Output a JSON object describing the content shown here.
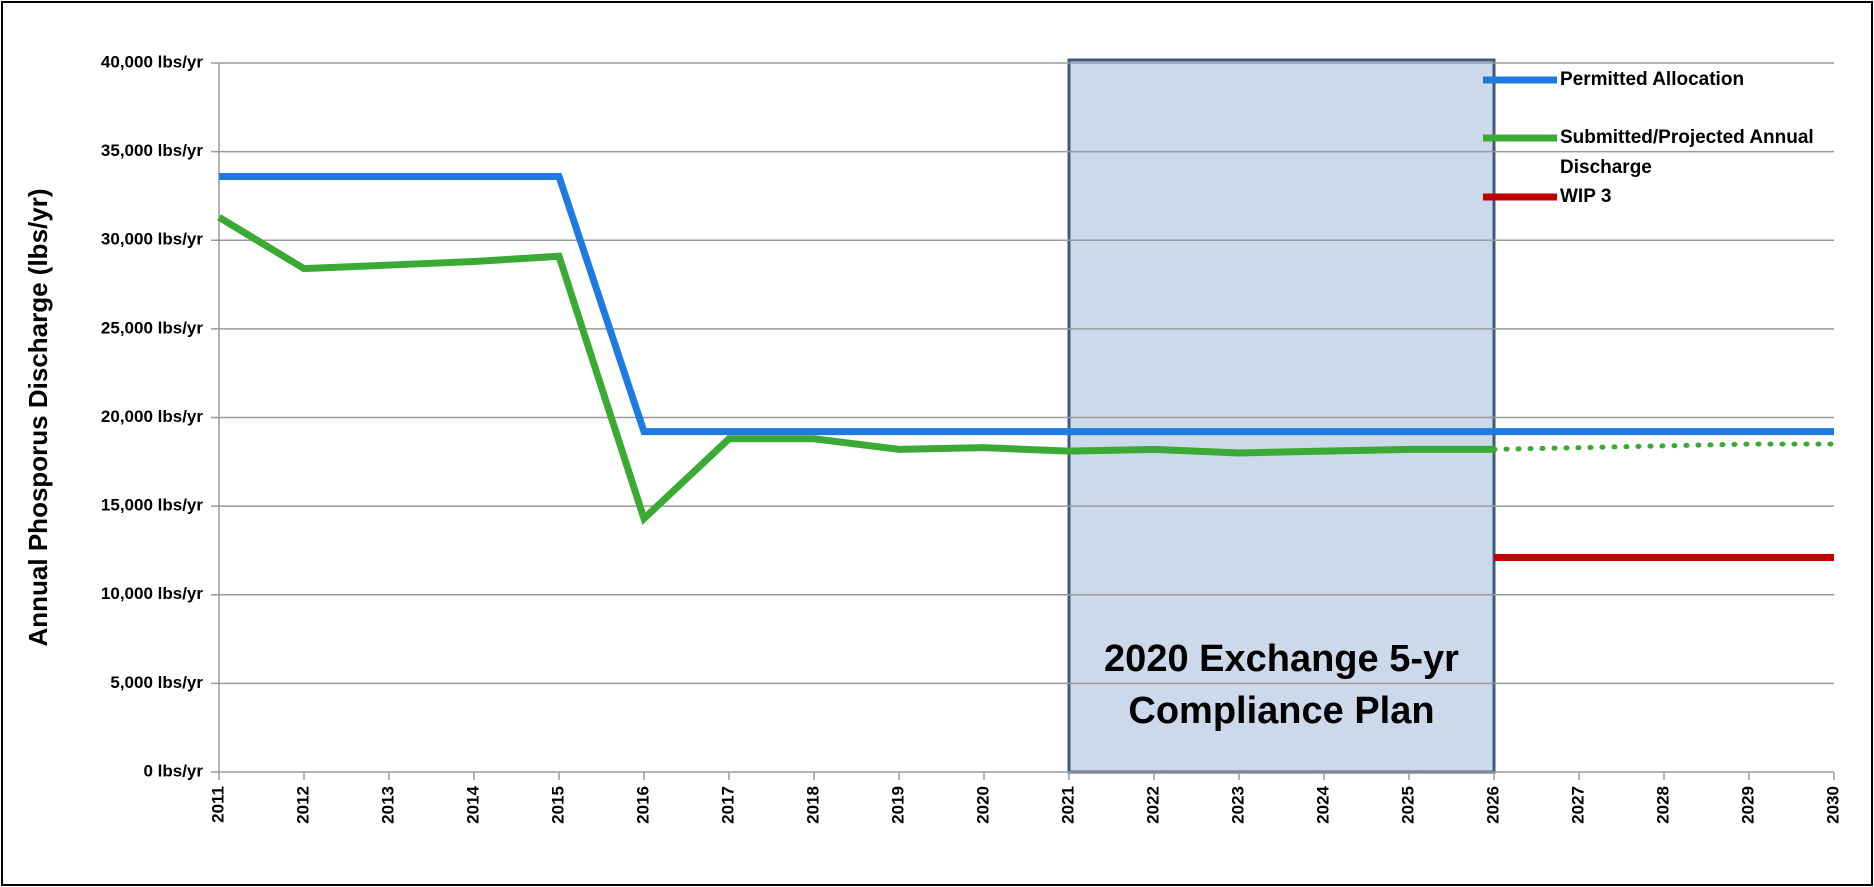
{
  "chart_data": {
    "type": "line",
    "y_label": "Annual Phosporus Discharge (lbs/yr)",
    "x": [
      2011,
      2012,
      2013,
      2014,
      2015,
      2016,
      2017,
      2018,
      2019,
      2020,
      2021,
      2022,
      2023,
      2024,
      2025,
      2026,
      2027,
      2028,
      2029,
      2030
    ],
    "xlim": [
      2011,
      2030
    ],
    "xticks": [
      2011,
      2012,
      2013,
      2014,
      2015,
      2016,
      2017,
      2018,
      2019,
      2020,
      2021,
      2022,
      2023,
      2024,
      2025,
      2026,
      2027,
      2028,
      2029,
      2030
    ],
    "ylim": [
      0,
      40000
    ],
    "yticks": [
      {
        "value": 0,
        "label": "0 lbs/yr"
      },
      {
        "value": 5000,
        "label": "5,000 lbs/yr"
      },
      {
        "value": 10000,
        "label": "10,000 lbs/yr"
      },
      {
        "value": 15000,
        "label": "15,000 lbs/yr"
      },
      {
        "value": 20000,
        "label": "20,000 lbs/yr"
      },
      {
        "value": 25000,
        "label": "25,000 lbs/yr"
      },
      {
        "value": 30000,
        "label": "30,000 lbs/yr"
      },
      {
        "value": 35000,
        "label": "35,000 lbs/yr"
      },
      {
        "value": 40000,
        "label": "40,000 lbs/yr"
      }
    ],
    "grid": true,
    "legend": "top-right",
    "series": [
      {
        "name": "Permitted Allocation",
        "color": "#1f7ae0",
        "values": [
          33600,
          33600,
          33600,
          33600,
          33600,
          19200,
          19200,
          19200,
          19200,
          19200,
          19200,
          19200,
          19200,
          19200,
          19200,
          19200,
          19200,
          19200,
          19200,
          19200
        ]
      },
      {
        "name": "Submitted/Projected Annual Discharge",
        "color": "#3aaa35",
        "dotted_from_x": 2026,
        "values": [
          31300,
          28400,
          28600,
          28800,
          29100,
          14300,
          18800,
          18800,
          18200,
          18300,
          18100,
          18200,
          18000,
          18100,
          18200,
          18200,
          18300,
          18400,
          18500,
          18500
        ]
      },
      {
        "name": "WIP 3",
        "color": "#c00000",
        "values": [
          null,
          null,
          null,
          null,
          null,
          null,
          null,
          null,
          null,
          null,
          null,
          null,
          null,
          null,
          null,
          12100,
          12100,
          12100,
          12100,
          12100
        ]
      }
    ],
    "annotation": {
      "lines": [
        "2020 Exchange 5-yr",
        "Compliance Plan"
      ],
      "x_range": [
        2021,
        2026
      ],
      "color": "#ccd9ea",
      "border": "#3f5a7e"
    }
  }
}
